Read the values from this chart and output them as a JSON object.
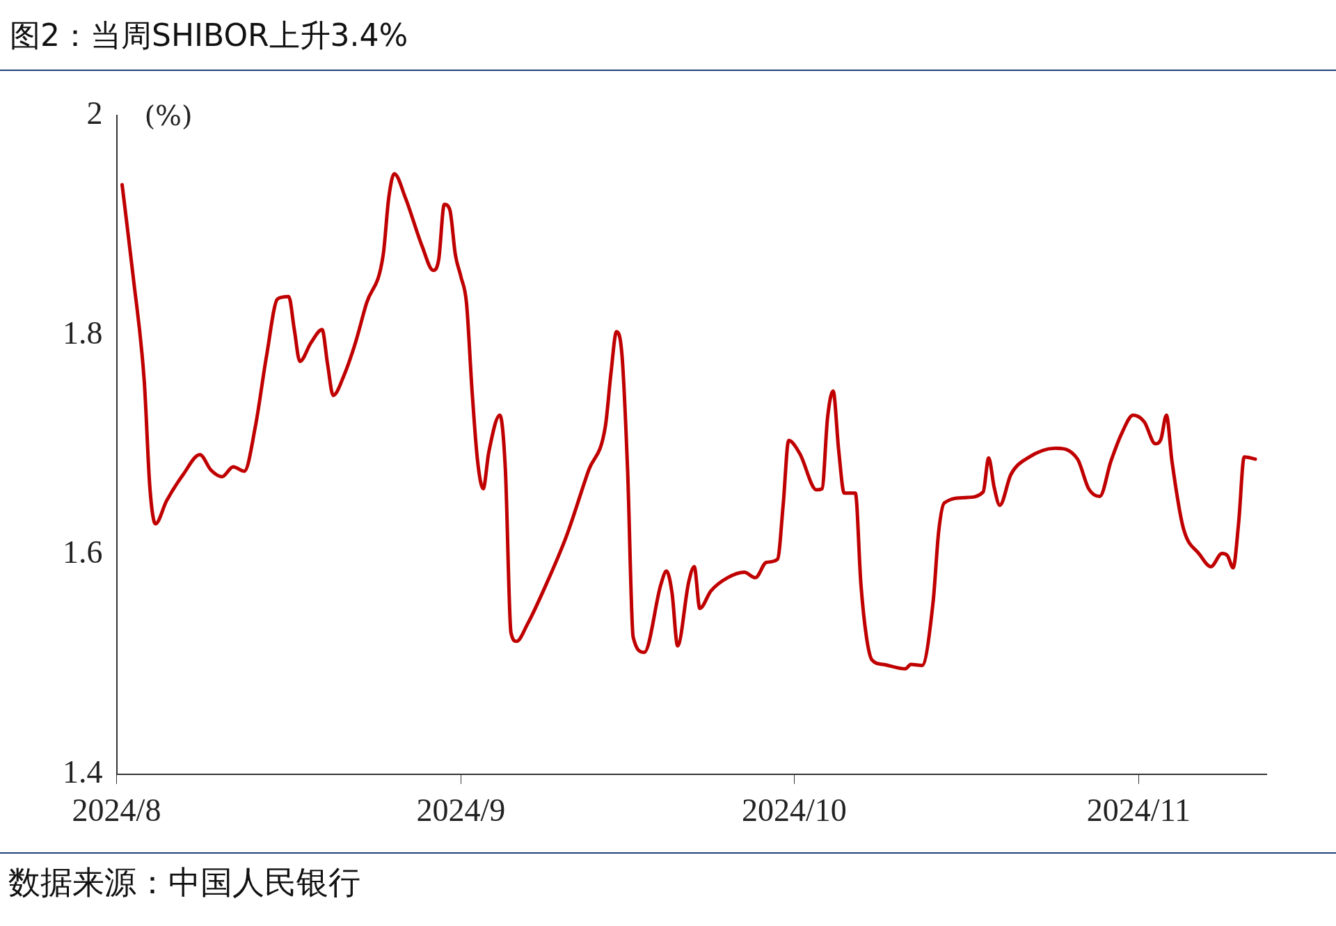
{
  "chart_data": {
    "type": "line",
    "title": "图2：当周SHIBOR上升3.4%",
    "ylabel": "(%)",
    "annotations": [
      "数据来源：中国人民银行"
    ],
    "x": [
      "2024-08-01T12:00",
      "2024-08-02T12:00",
      "2024-08-03T12:00",
      "2024-08-04",
      "2024-08-04T12:00",
      "2024-08-05T12:00",
      "2024-08-07",
      "2024-08-08T12:00",
      "2024-08-09T12:00",
      "2024-08-10T12:00",
      "2024-08-11T12:00",
      "2024-08-12T12:00",
      "2024-08-13T12:00",
      "2024-08-14T12:00",
      "2024-08-15T12:00",
      "2024-08-16T12:00",
      "2024-08-17",
      "2024-08-17T12:00",
      "2024-08-18T12:00",
      "2024-08-19T12:00",
      "2024-08-20",
      "2024-08-20T12:00",
      "2024-08-21T12:00",
      "2024-08-22T12:00",
      "2024-08-23T12:00",
      "2024-08-25",
      "2024-08-25T12:00",
      "2024-08-26",
      "2024-08-27",
      "2024-08-28T12:00",
      "2024-08-29T12:00",
      "2024-08-30",
      "2024-08-30T12:00",
      "2024-08-31",
      "2024-08-31T12:00",
      "2024-09-01",
      "2024-09-01T12:00",
      "2024-09-02",
      "2024-09-02T12:00",
      "2024-09-03",
      "2024-09-03T12:00",
      "2024-09-04T12:00",
      "2024-09-05",
      "2024-09-05T12:00",
      "2024-09-06",
      "2024-09-07",
      "2024-09-08T12:00",
      "2024-09-10T12:00",
      "2024-09-12T12:00",
      "2024-09-14",
      "2024-09-14T12:00",
      "2024-09-15",
      "2024-09-15T12:00",
      "2024-09-16",
      "2024-09-16T12:00",
      "2024-09-17T12:00",
      "2024-09-19",
      "2024-09-19T12:00",
      "2024-09-20",
      "2024-09-20T12:00",
      "2024-09-21T12:00",
      "2024-09-22",
      "2024-09-22T12:00",
      "2024-09-23T12:00",
      "2024-09-25",
      "2024-09-26T12:00",
      "2024-09-27T12:00",
      "2024-09-28T12:00",
      "2024-09-29T12:00",
      "2024-09-30",
      "2024-09-30T12:00",
      "2024-10-01T12:00",
      "2024-10-03",
      "2024-10-03T12:00",
      "2024-10-04",
      "2024-10-04T12:00",
      "2024-10-05",
      "2024-10-05T12:00",
      "2024-10-06T12:00",
      "2024-10-07",
      "2024-10-07T12:00",
      "2024-10-08",
      "2024-10-09",
      "2024-10-11",
      "2024-10-11T12:00",
      "2024-10-12T12:00",
      "2024-10-13T12:00",
      "2024-10-14",
      "2024-10-14T12:00",
      "2024-10-16T12:00",
      "2024-10-18",
      "2024-10-18T12:00",
      "2024-10-19",
      "2024-10-19T12:00",
      "2024-10-20T12:00",
      "2024-10-22",
      "2024-10-24T12:00",
      "2024-10-26T12:00",
      "2024-10-27T12:00",
      "2024-10-28T12:00",
      "2024-10-29T12:00",
      "2024-10-30T12:00",
      "2024-10-31T12:00",
      "2024-11-01T12:00",
      "2024-11-02T12:00",
      "2024-11-03",
      "2024-11-03T12:00",
      "2024-11-04",
      "2024-11-05",
      "2024-11-06T12:00",
      "2024-11-07T12:00",
      "2024-11-08T12:00",
      "2024-11-09",
      "2024-11-09T12:00",
      "2024-11-10",
      "2024-11-10T12:00",
      "2024-11-11T12:00"
    ],
    "series": [
      {
        "color": "#c00000",
        "values": [
          1.937,
          1.853,
          1.757,
          1.661,
          1.628,
          1.649,
          1.673,
          1.691,
          1.677,
          1.671,
          1.68,
          1.676,
          1.717,
          1.781,
          1.833,
          1.835,
          1.805,
          1.776,
          1.793,
          1.805,
          1.773,
          1.745,
          1.764,
          1.793,
          1.829,
          1.873,
          1.925,
          1.947,
          1.925,
          1.881,
          1.859,
          1.869,
          1.919,
          1.914,
          1.873,
          1.853,
          1.829,
          1.749,
          1.685,
          1.66,
          1.693,
          1.727,
          1.677,
          1.529,
          1.521,
          1.537,
          1.569,
          1.617,
          1.677,
          1.717,
          1.765,
          1.803,
          1.781,
          1.677,
          1.525,
          1.511,
          1.573,
          1.585,
          1.565,
          1.517,
          1.575,
          1.589,
          1.551,
          1.567,
          1.579,
          1.584,
          1.579,
          1.593,
          1.596,
          1.645,
          1.704,
          1.692,
          1.659,
          1.66,
          1.725,
          1.749,
          1.695,
          1.656,
          1.656,
          1.573,
          1.525,
          1.504,
          1.5,
          1.496,
          1.5,
          1.499,
          1.557,
          1.621,
          1.647,
          1.652,
          1.657,
          1.688,
          1.661,
          1.645,
          1.673,
          1.688,
          1.697,
          1.687,
          1.66,
          1.653,
          1.685,
          1.711,
          1.727,
          1.721,
          1.701,
          1.705,
          1.727,
          1.685,
          1.625,
          1.6,
          1.589,
          1.601,
          1.599,
          1.588,
          1.629,
          1.689,
          1.687
        ]
      }
    ],
    "xlim": [
      "2024-08-01",
      "2024-11-12T12:00"
    ],
    "xticks": [
      {
        "value": "2024-08-01",
        "label": "2024/8"
      },
      {
        "value": "2024-09-01",
        "label": "2024/9"
      },
      {
        "value": "2024-10-01",
        "label": "2024/10"
      },
      {
        "value": "2024-11-01",
        "label": "2024/11"
      }
    ],
    "ylim": [
      1.4,
      2
    ],
    "yticks": [
      1.4,
      1.6,
      1.8,
      2
    ],
    "grid": false,
    "legend": false,
    "marker": "none",
    "line_style": "solid"
  }
}
